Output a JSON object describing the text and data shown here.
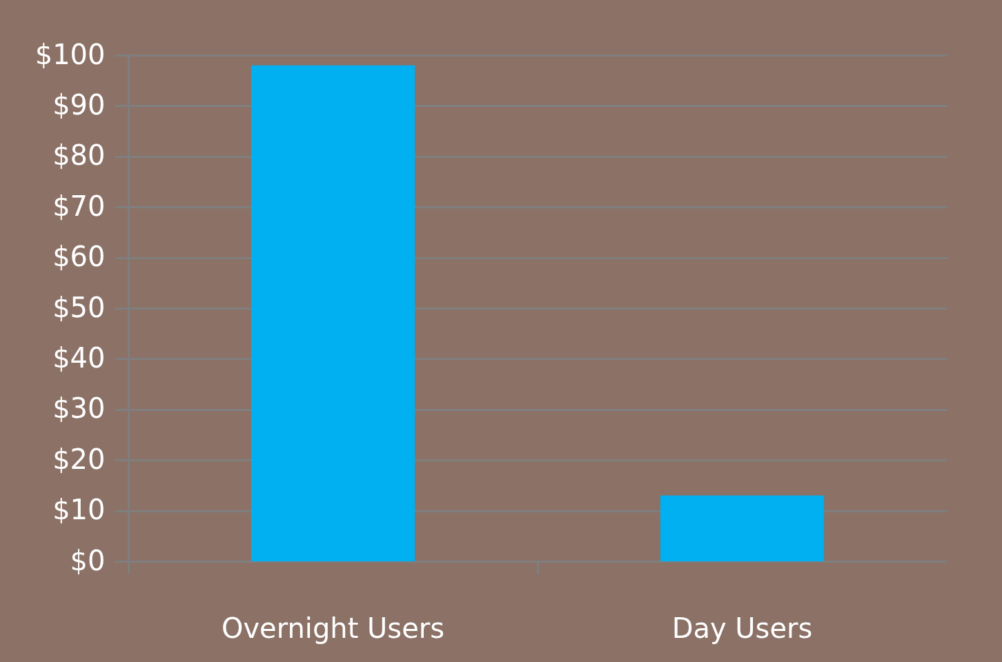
{
  "chart_data": {
    "type": "bar",
    "categories": [
      "Overnight Users",
      "Day Users"
    ],
    "values": [
      98,
      13
    ],
    "color": "#00b0f0",
    "ylim": [
      0,
      100
    ],
    "yticks": [
      {
        "value": 0,
        "label": "$0"
      },
      {
        "value": 10,
        "label": "$10"
      },
      {
        "value": 20,
        "label": "$20"
      },
      {
        "value": 30,
        "label": "$30"
      },
      {
        "value": 40,
        "label": "$40"
      },
      {
        "value": 50,
        "label": "$50"
      },
      {
        "value": 60,
        "label": "$60"
      },
      {
        "value": 70,
        "label": "$70"
      },
      {
        "value": 80,
        "label": "$80"
      },
      {
        "value": 90,
        "label": "$90"
      },
      {
        "value": 100,
        "label": "$100"
      }
    ],
    "grid": "y"
  }
}
